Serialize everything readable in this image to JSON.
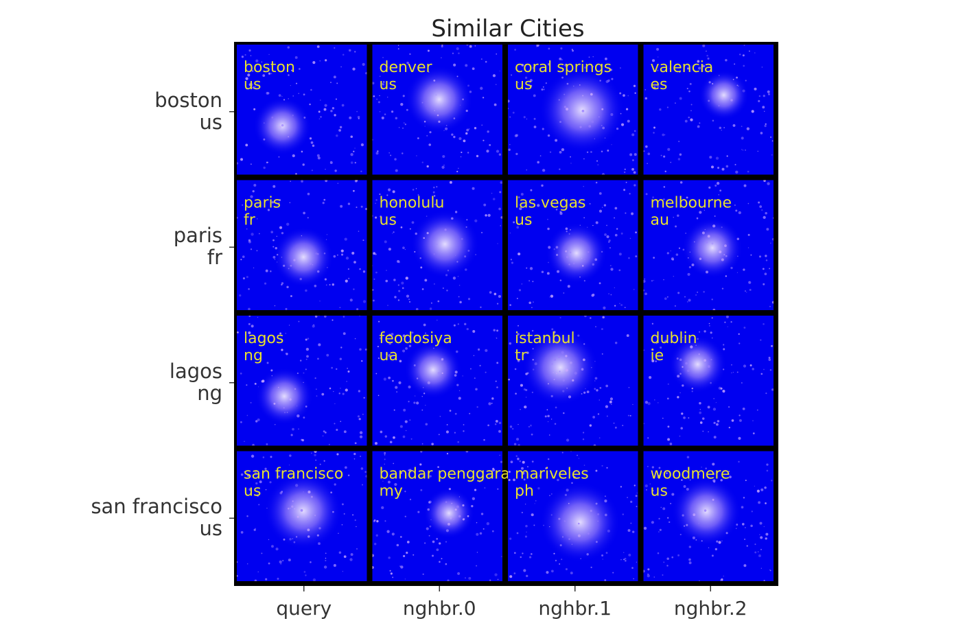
{
  "chart_data": {
    "type": "image-grid",
    "title": "Similar Cities",
    "columns": [
      "query",
      "nghbr.0",
      "nghbr.1",
      "nghbr.2"
    ],
    "rows": [
      {
        "label": [
          "boston",
          "us"
        ],
        "cells": [
          {
            "city": "boston",
            "country": "us"
          },
          {
            "city": "denver",
            "country": "us"
          },
          {
            "city": "coral springs",
            "country": "us"
          },
          {
            "city": "valencia",
            "country": "es"
          }
        ]
      },
      {
        "label": [
          "paris",
          "fr"
        ],
        "cells": [
          {
            "city": "paris",
            "country": "fr"
          },
          {
            "city": "honolulu",
            "country": "us"
          },
          {
            "city": "las vegas",
            "country": "us"
          },
          {
            "city": "melbourne",
            "country": "au"
          }
        ]
      },
      {
        "label": [
          "lagos",
          "ng"
        ],
        "cells": [
          {
            "city": "lagos",
            "country": "ng"
          },
          {
            "city": "feodosiya",
            "country": "ua"
          },
          {
            "city": "istanbul",
            "country": "tr"
          },
          {
            "city": "dublin",
            "country": "ie"
          }
        ]
      },
      {
        "label": [
          "san francisco",
          "us"
        ],
        "cells": [
          {
            "city": "san francisco",
            "country": "us"
          },
          {
            "city": "bandar penggaram",
            "country": "my"
          },
          {
            "city": "mariveles",
            "country": "ph"
          },
          {
            "city": "woodmere",
            "country": "us"
          }
        ]
      }
    ],
    "colors": {
      "background": "#0000f0",
      "label": "#e8e030",
      "lights": "#c8a8ff"
    }
  }
}
